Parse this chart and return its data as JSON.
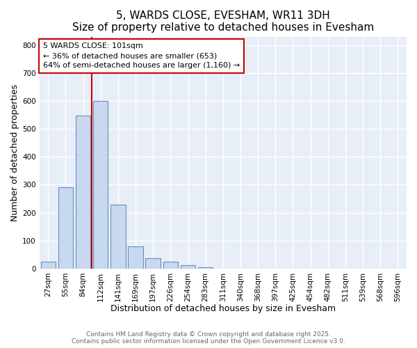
{
  "title": "5, WARDS CLOSE, EVESHAM, WR11 3DH",
  "subtitle": "Size of property relative to detached houses in Evesham",
  "xlabel": "Distribution of detached houses by size in Evesham",
  "ylabel": "Number of detached properties",
  "categories": [
    "27sqm",
    "55sqm",
    "84sqm",
    "112sqm",
    "141sqm",
    "169sqm",
    "197sqm",
    "226sqm",
    "254sqm",
    "283sqm",
    "311sqm",
    "340sqm",
    "368sqm",
    "397sqm",
    "425sqm",
    "454sqm",
    "482sqm",
    "511sqm",
    "539sqm",
    "568sqm",
    "596sqm"
  ],
  "values": [
    25,
    290,
    548,
    600,
    228,
    80,
    37,
    25,
    12,
    5,
    0,
    0,
    0,
    0,
    0,
    0,
    0,
    0,
    0,
    0,
    0
  ],
  "bar_color": "#c8d8ee",
  "bar_edge_color": "#6090c0",
  "vline_color": "#cc0000",
  "annotation_text": "5 WARDS CLOSE: 101sqm\n← 36% of detached houses are smaller (653)\n64% of semi-detached houses are larger (1,160) →",
  "annotation_box_color": "#ffffff",
  "annotation_box_edge": "#cc0000",
  "ylim": [
    0,
    830
  ],
  "yticks": [
    0,
    100,
    200,
    300,
    400,
    500,
    600,
    700,
    800
  ],
  "background_color": "#ffffff",
  "plot_background": "#e8eef8",
  "grid_color": "#ffffff",
  "footer_line1": "Contains HM Land Registry data © Crown copyright and database right 2025.",
  "footer_line2": "Contains public sector information licensed under the Open Government Licence v3.0.",
  "title_fontsize": 11,
  "subtitle_fontsize": 10,
  "xlabel_fontsize": 9,
  "ylabel_fontsize": 9,
  "tick_fontsize": 7.5,
  "footer_fontsize": 6.5
}
